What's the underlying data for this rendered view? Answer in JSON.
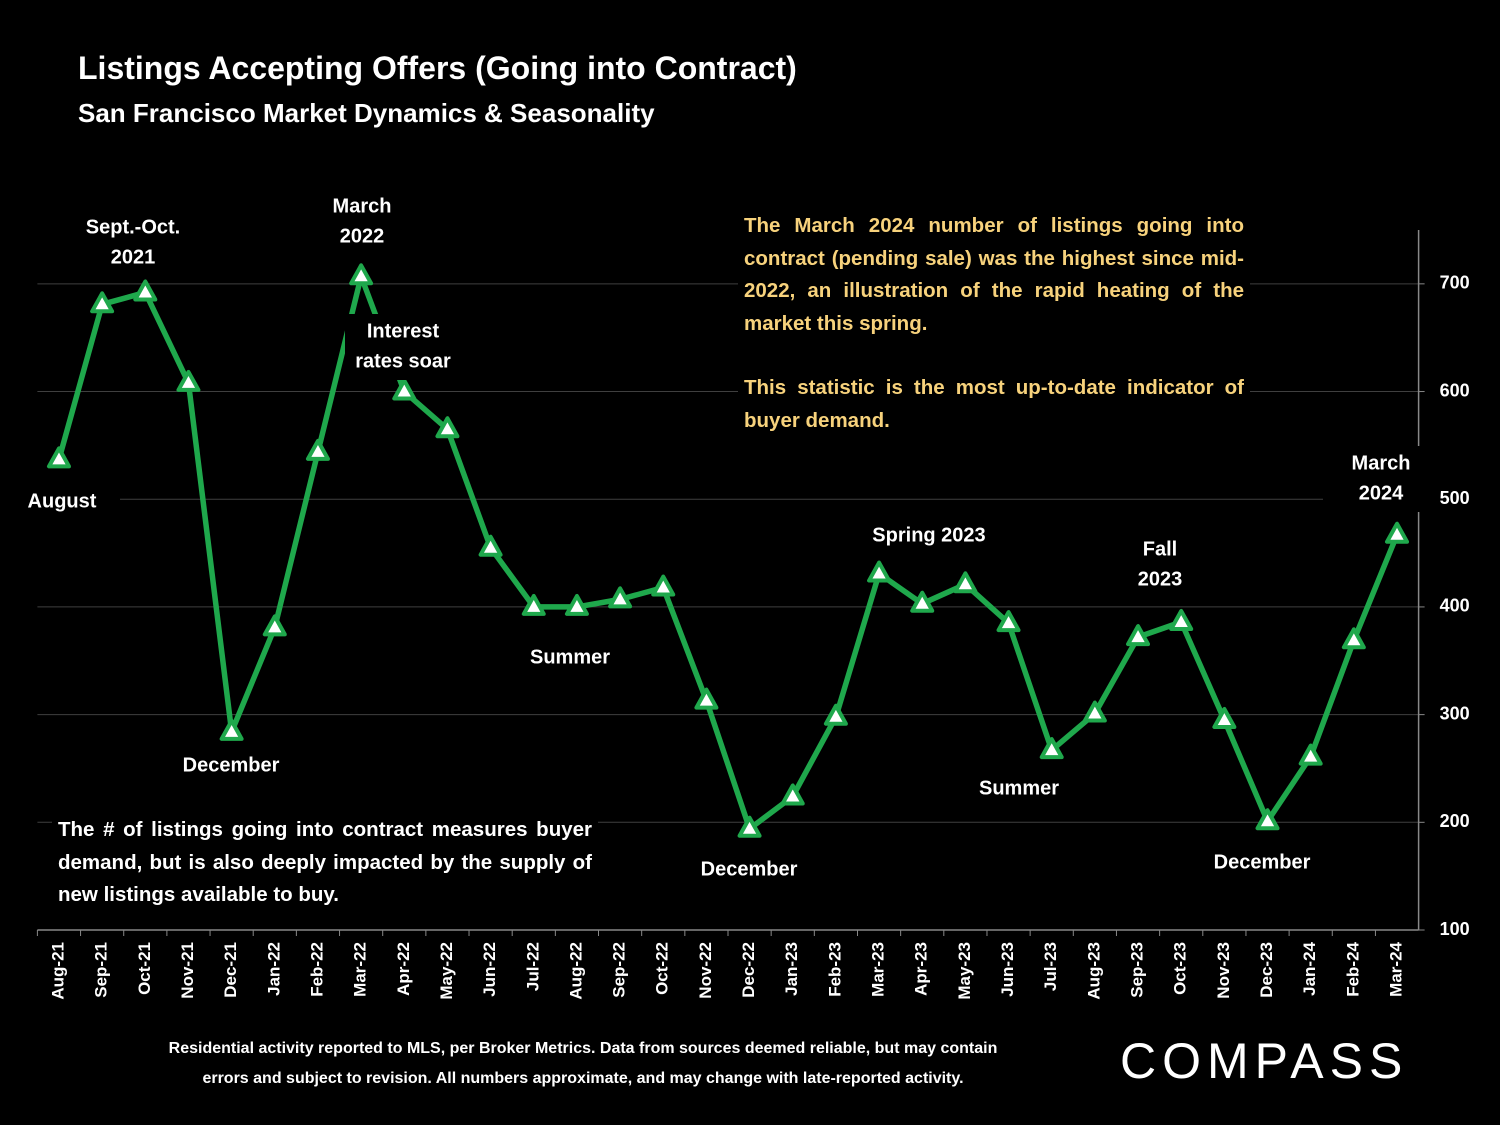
{
  "chart_data": {
    "type": "line",
    "title": "Listings Accepting Offers (Going into Contract)",
    "subtitle": "San Francisco Market Dynamics & Seasonality",
    "categories": [
      "Aug-21",
      "Sep-21",
      "Oct-21",
      "Nov-21",
      "Dec-21",
      "Jan-22",
      "Feb-22",
      "Mar-22",
      "Apr-22",
      "May-22",
      "Jun-22",
      "Jul-22",
      "Aug-22",
      "Sep-22",
      "Oct-22",
      "Nov-22",
      "Dec-22",
      "Jan-23",
      "Feb-23",
      "Mar-23",
      "Apr-23",
      "May-23",
      "Jun-23",
      "Jul-23",
      "Aug-23",
      "Sep-23",
      "Oct-23",
      "Nov-23",
      "Dec-23",
      "Jan-24",
      "Feb-24",
      "Mar-24"
    ],
    "series": [
      {
        "color": "#1fa84c",
        "values": [
          537,
          681,
          692,
          608,
          284,
          381,
          544,
          707,
          600,
          565,
          455,
          400,
          400,
          407,
          418,
          313,
          194,
          224,
          298,
          431,
          403,
          421,
          385,
          267,
          301,
          372,
          386,
          295,
          201,
          261,
          369,
          467
        ]
      }
    ],
    "ylim": [
      100,
      750
    ],
    "yticks": [
      100,
      200,
      300,
      400,
      500,
      600,
      700
    ],
    "grid": true,
    "annotations": [
      [
        "Sept.-Oct.",
        "2021"
      ],
      [
        "March",
        "2022"
      ],
      [
        "Interest",
        "rates soar"
      ],
      [
        "August"
      ],
      [
        "December"
      ],
      [
        "Summer"
      ],
      [
        "December"
      ],
      [
        "Spring 2023"
      ],
      [
        "Summer"
      ],
      [
        "Fall",
        "2023"
      ],
      [
        "December"
      ],
      [
        "March",
        "2024"
      ]
    ],
    "notes": {
      "right": [
        "The March 2024 number of listings going into contract (pending sale) was the highest since mid-2022, an illustration of the rapid heating of the market this spring.",
        "This statistic is the most up-to-date indicator of buyer demand."
      ],
      "left": "The # of listings going into contract measures buyer demand, but is also deeply impacted by the supply of new listings available to buy."
    },
    "footer": [
      "Residential activity reported to MLS, per Broker Metrics. Data from sources deemed reliable, but may contain",
      "errors and subject to revision. All numbers approximate, and may change with late-reported activity."
    ],
    "logo": "COMPASS"
  }
}
